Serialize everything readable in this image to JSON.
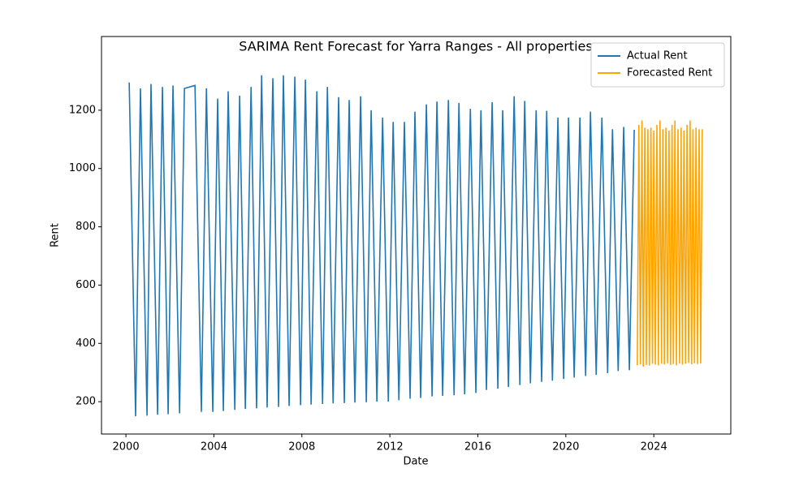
{
  "chart_data": {
    "type": "line",
    "title": "SARIMA Rent Forecast for Yarra Ranges - All properties",
    "xlabel": "Date",
    "ylabel": "Rent",
    "xlim": [
      1998.89,
      2027.5
    ],
    "ylim": [
      89,
      1453
    ],
    "xticks": [
      2000,
      2004,
      2008,
      2012,
      2016,
      2020,
      2024
    ],
    "yticks": [
      200,
      400,
      600,
      800,
      1000,
      1200
    ],
    "legend": "upper right",
    "series": [
      {
        "name": "Actual Rent",
        "color": "#1f77b4",
        "x": [
          2000.15,
          2000.44,
          2000.66,
          2000.96,
          2001.14,
          2001.44,
          2001.66,
          2001.92,
          2002.14,
          2002.44,
          2002.66,
          2003.14,
          2003.43,
          2003.66,
          2003.95,
          2004.17,
          2004.43,
          2004.65,
          2004.95,
          2005.17,
          2005.43,
          2005.69,
          2005.94,
          2006.17,
          2006.42,
          2006.68,
          2006.94,
          2007.16,
          2007.42,
          2007.68,
          2007.94,
          2008.16,
          2008.42,
          2008.68,
          2008.94,
          2009.16,
          2009.42,
          2009.67,
          2009.93,
          2010.15,
          2010.41,
          2010.67,
          2010.93,
          2011.15,
          2011.41,
          2011.67,
          2011.93,
          2012.15,
          2012.41,
          2012.66,
          2012.92,
          2013.14,
          2013.4,
          2013.66,
          2013.92,
          2014.14,
          2014.4,
          2014.66,
          2014.92,
          2015.14,
          2015.4,
          2015.66,
          2015.91,
          2016.14,
          2016.39,
          2016.65,
          2016.91,
          2017.13,
          2017.39,
          2017.65,
          2017.91,
          2018.13,
          2018.39,
          2018.65,
          2018.9,
          2019.13,
          2019.39,
          2019.64,
          2019.9,
          2020.12,
          2020.38,
          2020.64,
          2020.9,
          2021.12,
          2021.38,
          2021.64,
          2021.9,
          2022.12,
          2022.38,
          2022.63,
          2022.89,
          2023.11
        ],
        "values": [
          1295,
          150,
          1275,
          152,
          1290,
          155,
          1280,
          157,
          1285,
          160,
          1275,
          1285,
          165,
          1275,
          165,
          1240,
          168,
          1265,
          172,
          1250,
          175,
          1280,
          177,
          1320,
          180,
          1310,
          182,
          1320,
          185,
          1315,
          188,
          1305,
          190,
          1265,
          192,
          1280,
          194,
          1245,
          195,
          1235,
          197,
          1248,
          198,
          1200,
          200,
          1175,
          200,
          1160,
          205,
          1160,
          210,
          1195,
          213,
          1220,
          218,
          1230,
          220,
          1235,
          222,
          1225,
          225,
          1205,
          230,
          1200,
          240,
          1228,
          245,
          1200,
          250,
          1248,
          257,
          1232,
          263,
          1200,
          268,
          1198,
          272,
          1175,
          278,
          1175,
          283,
          1175,
          288,
          1195,
          292,
          1175,
          298,
          1135,
          305,
          1143,
          308,
          1133
        ]
      },
      {
        "name": "Forecasted Rent",
        "color": "#ffa500",
        "x": [
          2023.25,
          2023.32,
          2023.39,
          2023.46,
          2023.52,
          2023.59,
          2023.66,
          2023.73,
          2023.8,
          2023.87,
          2023.94,
          2024.0,
          2024.07,
          2024.14,
          2024.21,
          2024.28,
          2024.35,
          2024.41,
          2024.48,
          2024.55,
          2024.62,
          2024.69,
          2024.76,
          2024.83,
          2024.89,
          2024.96,
          2025.03,
          2025.1,
          2025.17,
          2025.24,
          2025.3,
          2025.37,
          2025.44,
          2025.51,
          2025.58,
          2025.65,
          2025.72,
          2025.78,
          2025.85,
          2025.92,
          2025.99,
          2026.06,
          2026.13,
          2026.2
        ],
        "values": [
          325,
          1150,
          328,
          1165,
          320,
          1140,
          326,
          1135,
          324,
          1140,
          330,
          1130,
          327,
          1150,
          325,
          1165,
          330,
          1135,
          328,
          1140,
          332,
          1130,
          326,
          1150,
          329,
          1165,
          325,
          1135,
          331,
          1140,
          327,
          1130,
          330,
          1150,
          333,
          1165,
          328,
          1135,
          332,
          1140,
          329,
          1135,
          331,
          1135
        ]
      }
    ]
  }
}
